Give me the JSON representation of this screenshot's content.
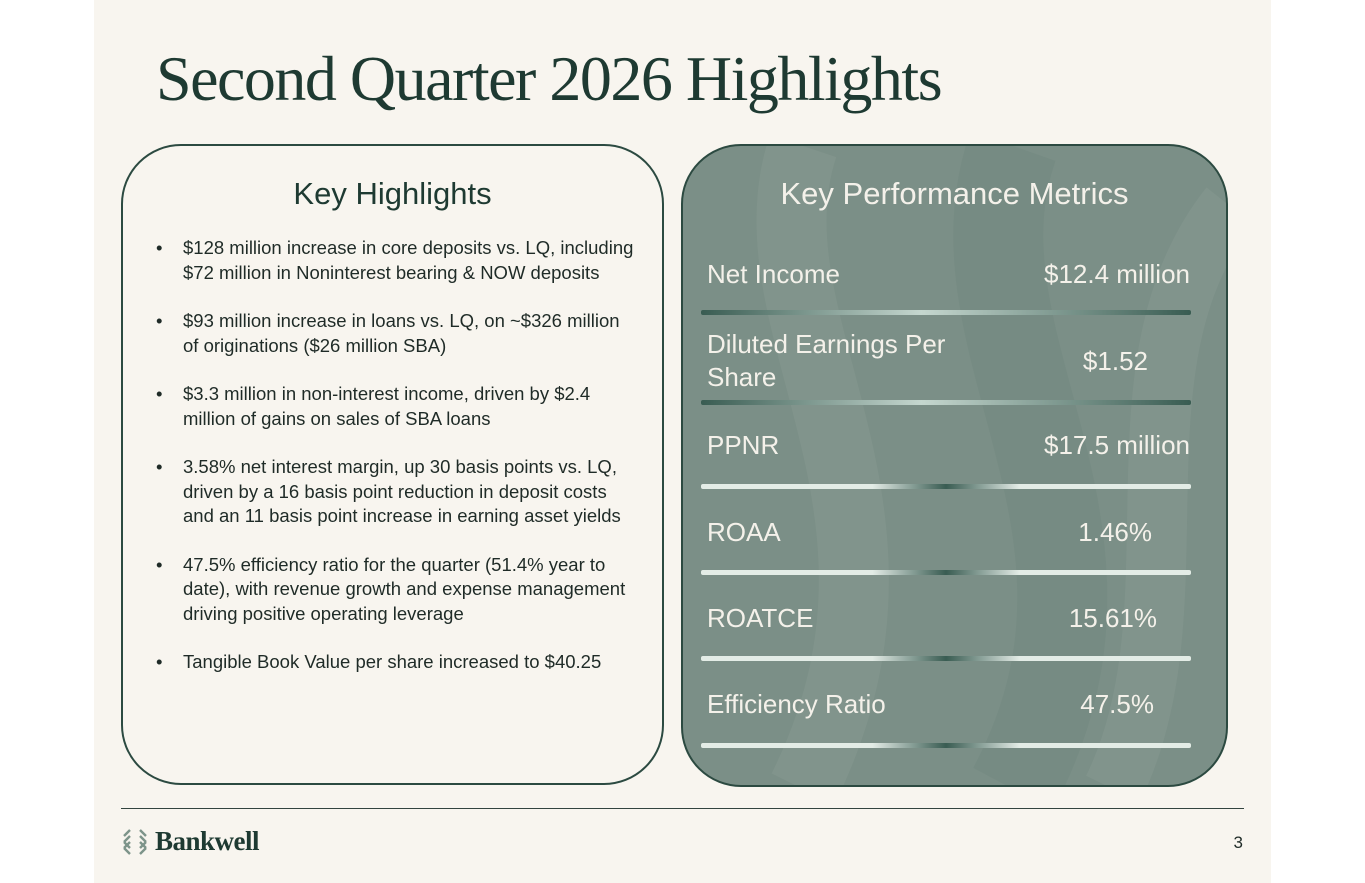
{
  "slide": {
    "title": "Second Quarter 2026 Highlights",
    "page_number": "3"
  },
  "highlights": {
    "heading": "Key Highlights",
    "bullet_char": "•",
    "items": [
      "$128 million increase in core deposits vs. LQ, including $72 million in Noninterest bearing & NOW deposits",
      "$93 million increase in loans vs. LQ, on ~$326 million of originations ($26 million SBA)",
      "$3.3 million in non-interest income, driven by $2.4 million of gains on sales of SBA loans",
      "3.58% net interest margin, up 30 basis points vs. LQ, driven by a 16 basis point reduction in deposit costs and an 11 basis point increase in earning asset yields",
      "47.5% efficiency ratio for the quarter (51.4% year to date), with revenue growth and expense management driving positive operating leverage",
      "Tangible Book Value per share increased to $40.25"
    ]
  },
  "metrics": {
    "heading": "Key Performance Metrics",
    "rows": [
      {
        "label": "Net Income",
        "value": "$12.4 million"
      },
      {
        "label": "Diluted Earnings Per Share",
        "value": "$1.52"
      },
      {
        "label": "PPNR",
        "value": "$17.5 million"
      },
      {
        "label": "ROAA",
        "value": "1.46%"
      },
      {
        "label": "ROATCE",
        "value": "15.61%"
      },
      {
        "label": "Efficiency Ratio",
        "value": "47.5%"
      }
    ]
  },
  "footer": {
    "logo_text": "Bankwell",
    "logo_icon": "bankwell-logo-icon"
  },
  "colors": {
    "background": "#f8f5ef",
    "primary_text": "#1e3a32",
    "metrics_panel": "#7b8f87",
    "metrics_text": "#f4f1ea"
  }
}
